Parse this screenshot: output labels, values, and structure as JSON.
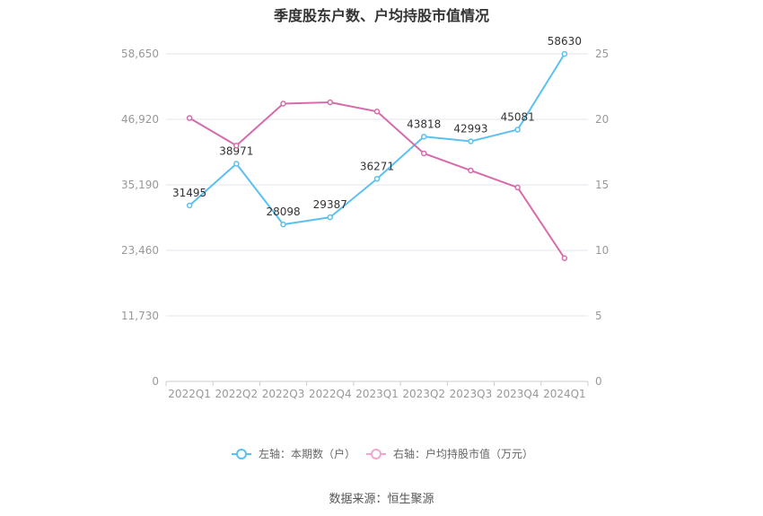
{
  "title": "季度股东户数、户均持股市值情况",
  "source": "数据来源：恒生聚源",
  "chart_data": {
    "type": "line",
    "categories": [
      "2022Q1",
      "2022Q2",
      "2022Q3",
      "2022Q4",
      "2023Q1",
      "2023Q2",
      "2023Q3",
      "2023Q4",
      "2024Q1"
    ],
    "left_axis": {
      "ticks": [
        "0",
        "11,730",
        "23,460",
        "35,190",
        "46,920",
        "58,650"
      ],
      "ylim": [
        0,
        58650
      ]
    },
    "right_axis": {
      "ticks": [
        "0",
        "5",
        "10",
        "15",
        "20",
        "25"
      ],
      "ylim": [
        0,
        25
      ]
    },
    "series": [
      {
        "name": "左轴：本期数（户）",
        "axis": "left",
        "color": "#5bc0f0",
        "values": [
          31495,
          38971,
          28098,
          29387,
          36271,
          43818,
          42993,
          45081,
          58630
        ],
        "labels": [
          "31495",
          "38971",
          "28098",
          "29387",
          "36271",
          "43818",
          "42993",
          "45081",
          "58630"
        ]
      },
      {
        "name": "右轴：户均持股市值（万元）",
        "axis": "right",
        "color": "#d66bac",
        "values": [
          20.1,
          18.0,
          21.2,
          21.3,
          20.6,
          17.4,
          16.1,
          14.8,
          9.4
        ]
      }
    ],
    "grid": true,
    "legend_position": "bottom-center"
  }
}
